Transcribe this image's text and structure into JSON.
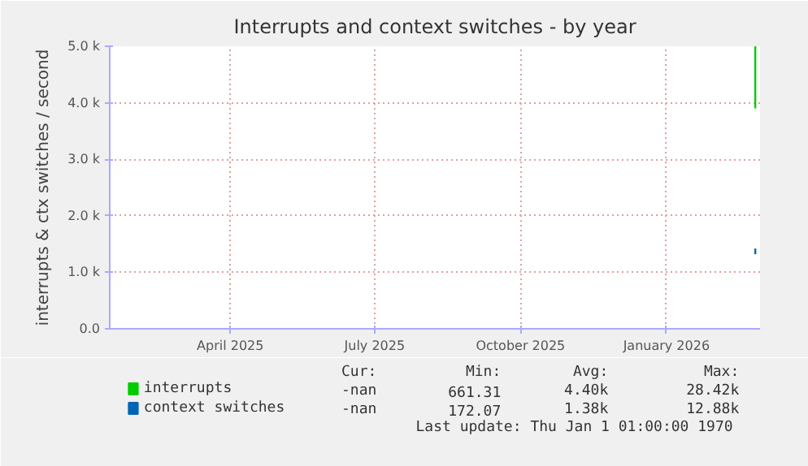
{
  "chart_data": {
    "type": "line",
    "title": "Interrupts and context switches - by year",
    "ylabel": "interrupts & ctx switches / second",
    "xlim": [
      "2025-01-15",
      "2026-03-01"
    ],
    "xticks": [
      {
        "value": "2025-04-01",
        "label": "April 2025"
      },
      {
        "value": "2025-07-01",
        "label": "July 2025"
      },
      {
        "value": "2025-10-01",
        "label": "October 2025"
      },
      {
        "value": "2026-01-01",
        "label": "January 2026"
      }
    ],
    "ylim": [
      0,
      5000
    ],
    "yticks": [
      {
        "value": 0,
        "label": "0.0"
      },
      {
        "value": 1000,
        "label": "1.0 k"
      },
      {
        "value": 2000,
        "label": "2.0 k"
      },
      {
        "value": 3000,
        "label": "3.0 k"
      },
      {
        "value": 4000,
        "label": "4.0 k"
      },
      {
        "value": 5000,
        "label": "5.0 k"
      }
    ],
    "grid": true,
    "legend": "bottom left",
    "marker": "none",
    "line_style": "solid",
    "series": [
      {
        "name": "interrupts",
        "color": "#00cc00",
        "x": [
          "2026-02-26",
          "2026-02-26"
        ],
        "values": [
          5000,
          3900
        ]
      },
      {
        "name": "context switches",
        "color": "#0066b3",
        "x": [
          "2026-02-26",
          "2026-02-26"
        ],
        "values": [
          1420,
          1320
        ]
      }
    ],
    "annotations": [
      "Cur:",
      "Min:",
      "Avg:",
      "Max:",
      "-nan",
      "661.31",
      "4.40k",
      "28.42k",
      "-nan",
      "172.07",
      "1.38k",
      "12.88k",
      "Last update: Thu Jan  1 01:00:00 1970"
    ]
  }
}
